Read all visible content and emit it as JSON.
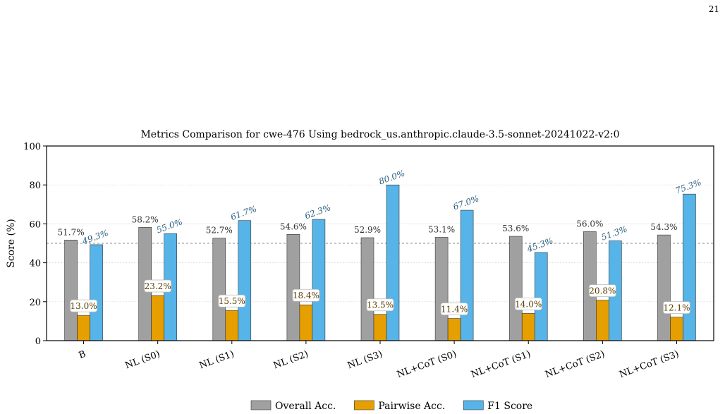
{
  "page_number": "21",
  "chart_data": {
    "type": "bar",
    "title": "Metrics Comparison for cwe-476 Using bedrock_us.anthropic.claude-3.5-sonnet-20241022-v2:0",
    "xlabel": "",
    "ylabel": "Score (%)",
    "ylim": [
      0,
      100
    ],
    "yticks": [
      0,
      20,
      40,
      60,
      80,
      100
    ],
    "reference_line": 50,
    "grid": true,
    "legend_position": "bottom-center",
    "categories": [
      "B",
      "NL (S0)",
      "NL (S1)",
      "NL (S2)",
      "NL (S3)",
      "NL+CoT (S0)",
      "NL+CoT (S1)",
      "NL+CoT (S2)",
      "NL+CoT (S3)"
    ],
    "series": [
      {
        "name": "Overall Acc.",
        "color": "#a0a0a0",
        "values": [
          51.7,
          58.2,
          52.7,
          54.6,
          52.9,
          53.1,
          53.6,
          56.0,
          54.3
        ]
      },
      {
        "name": "Pairwise Acc.",
        "color": "#e69f00",
        "values": [
          13.0,
          23.2,
          15.5,
          18.4,
          13.5,
          11.4,
          14.0,
          20.8,
          12.1
        ]
      },
      {
        "name": "F1 Score",
        "color": "#56b4e9",
        "values": [
          49.3,
          55.0,
          61.7,
          62.3,
          80.0,
          67.0,
          45.3,
          51.3,
          75.3
        ]
      }
    ]
  }
}
